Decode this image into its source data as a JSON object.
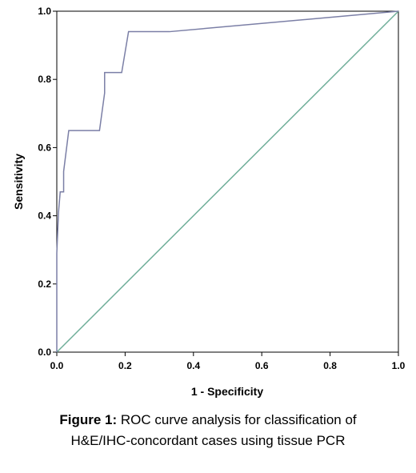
{
  "chart_data": {
    "type": "line",
    "xlabel": "1 - Specificity",
    "ylabel": "Sensitivity",
    "xlim": [
      0,
      1
    ],
    "ylim": [
      0,
      1
    ],
    "x_ticks": [
      "0.0",
      "0.2",
      "0.4",
      "0.6",
      "0.8",
      "1.0"
    ],
    "y_ticks": [
      "0.0",
      "0.2",
      "0.4",
      "0.6",
      "0.8",
      "1.0"
    ],
    "grid": false,
    "series": [
      {
        "role": "roc-curve",
        "color": "#7b7fa6",
        "points": [
          [
            0.0,
            0.0
          ],
          [
            0.0,
            0.29
          ],
          [
            0.005,
            0.41
          ],
          [
            0.01,
            0.47
          ],
          [
            0.02,
            0.47
          ],
          [
            0.02,
            0.53
          ],
          [
            0.035,
            0.65
          ],
          [
            0.125,
            0.65
          ],
          [
            0.14,
            0.76
          ],
          [
            0.14,
            0.82
          ],
          [
            0.19,
            0.82
          ],
          [
            0.21,
            0.94
          ],
          [
            0.33,
            0.94
          ],
          [
            1.0,
            1.0
          ]
        ]
      },
      {
        "role": "reference-line",
        "color": "#6fae99",
        "points": [
          [
            0.0,
            0.0
          ],
          [
            1.0,
            1.0
          ]
        ]
      }
    ]
  },
  "caption": {
    "prefix": "Figure 1:",
    "line1": " ROC curve analysis for classification of",
    "line2": "H&E/IHC-concordant cases using tissue PCR"
  }
}
